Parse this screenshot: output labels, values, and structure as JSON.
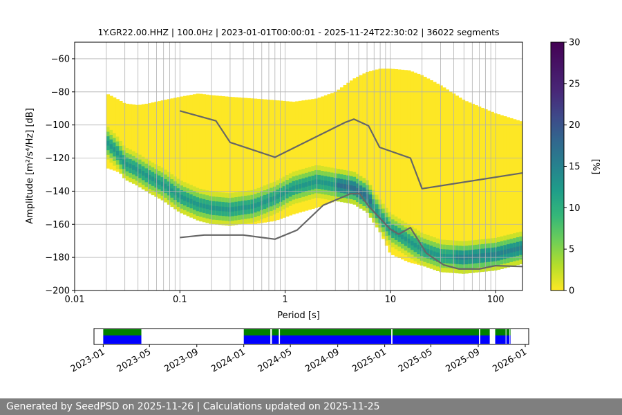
{
  "footer": {
    "text": "Generated by SeedPSD on 2025-11-26 | Calculations updated on 2025-11-25"
  },
  "chart_data": [
    {
      "type": "heatmap",
      "title": "1Y.GR22.00.HHZ | 100.0Hz | 2023-01-01T00:00:01 - 2025-11-24T22:30:02 | 36022 segments",
      "xlabel": "Period [s]",
      "ylabel": "Amplitude [m²/s⁴/Hz] [dB]",
      "x_scale": "log",
      "xlim": [
        0.01,
        180
      ],
      "ylim": [
        -200,
        -50
      ],
      "x_ticks": [
        0.01,
        0.1,
        1,
        10,
        100
      ],
      "x_tick_labels": [
        "0.01",
        "0.1",
        "1",
        "10",
        "100"
      ],
      "y_ticks": [
        -200,
        -180,
        -160,
        -140,
        -120,
        -100,
        -80,
        -60
      ],
      "y_tick_labels": [
        "−200",
        "−180",
        "−160",
        "−140",
        "−120",
        "−100",
        "−80",
        "−60"
      ],
      "grid": true,
      "colormap": "viridis",
      "colorbar": {
        "label": "[%]",
        "range": [
          0,
          30
        ],
        "ticks": [
          0,
          5,
          10,
          15,
          20,
          25,
          30
        ],
        "tick_labels": [
          "0",
          "5",
          "10",
          "15",
          "20",
          "25",
          "30"
        ]
      },
      "pdf_envelope": {
        "period": [
          0.02,
          0.025,
          0.03,
          0.04,
          0.05,
          0.07,
          0.1,
          0.15,
          0.2,
          0.3,
          0.5,
          0.8,
          1.2,
          2,
          3,
          4.5,
          6,
          8,
          10,
          15,
          20,
          30,
          50,
          100,
          180
        ],
        "upper_db": [
          -81,
          -84,
          -87,
          -88,
          -87,
          -85,
          -83,
          -81,
          -82,
          -83,
          -84,
          -85,
          -86,
          -84,
          -80,
          -72,
          -68,
          -66,
          -66,
          -67,
          -70,
          -76,
          -85,
          -93,
          -98
        ],
        "lower_db": [
          -126,
          -128,
          -131,
          -135,
          -138,
          -143,
          -150,
          -155,
          -159,
          -160,
          -160,
          -158,
          -154,
          -150,
          -146,
          -142,
          -150,
          -165,
          -178,
          -183,
          -185,
          -186,
          -187,
          -186,
          -184
        ],
        "mode_db": [
          -110,
          -116,
          -123,
          -127,
          -131,
          -136,
          -143,
          -148,
          -150,
          -151,
          -149,
          -144,
          -138,
          -134,
          -136,
          -138,
          -143,
          -155,
          -163,
          -170,
          -175,
          -179,
          -180,
          -178,
          -174
        ]
      },
      "series": [
        {
          "period": [
            0.1,
            0.22,
            0.3,
            0.8,
            3.7,
            4.5,
            6.2,
            7.9,
            15.5,
            20,
            180
          ],
          "values": [
            -91.5,
            -97.5,
            -110.5,
            -119.5,
            -98.5,
            -96.5,
            -100.5,
            -113.5,
            -120,
            -138.5,
            -129
          ]
        },
        {
          "period": [
            0.1,
            0.17,
            0.4,
            0.8,
            1.3,
            2.3,
            4.2,
            5.1,
            6.2,
            10,
            12,
            15.5,
            22,
            32,
            45,
            70,
            100,
            180
          ],
          "values": [
            -168,
            -166.5,
            -166.5,
            -169,
            -163.5,
            -148.5,
            -141.5,
            -141.5,
            -149,
            -163,
            -166,
            -162,
            -177.5,
            -184.5,
            -187,
            -187,
            -185,
            -185.5
          ]
        }
      ]
    },
    {
      "type": "bar",
      "x_ticks": [
        "2023-01",
        "2023-05",
        "2023-09",
        "2024-01",
        "2024-05",
        "2024-09",
        "2025-01",
        "2025-05",
        "2025-09",
        "2026-01"
      ],
      "xlim": [
        "2022-12-08",
        "2026-01-10"
      ],
      "data_availability": [
        [
          "2023-01-01",
          "2023-04-10"
        ],
        [
          "2024-01-01",
          "2024-03-10"
        ],
        [
          "2024-03-14",
          "2024-04-01"
        ],
        [
          "2024-04-04",
          "2025-01-18"
        ],
        [
          "2025-01-21",
          "2025-09-03"
        ],
        [
          "2025-09-06",
          "2025-10-01"
        ],
        [
          "2025-10-15",
          "2025-11-24"
        ]
      ],
      "gap_lines": [
        "2024-03-12",
        "2024-04-02",
        "2025-01-20",
        "2025-09-04",
        "2025-10-02",
        "2025-10-12",
        "2025-11-12",
        "2025-11-22"
      ],
      "colors": {
        "upper": "#008000",
        "lower": "#0000ff"
      }
    }
  ]
}
